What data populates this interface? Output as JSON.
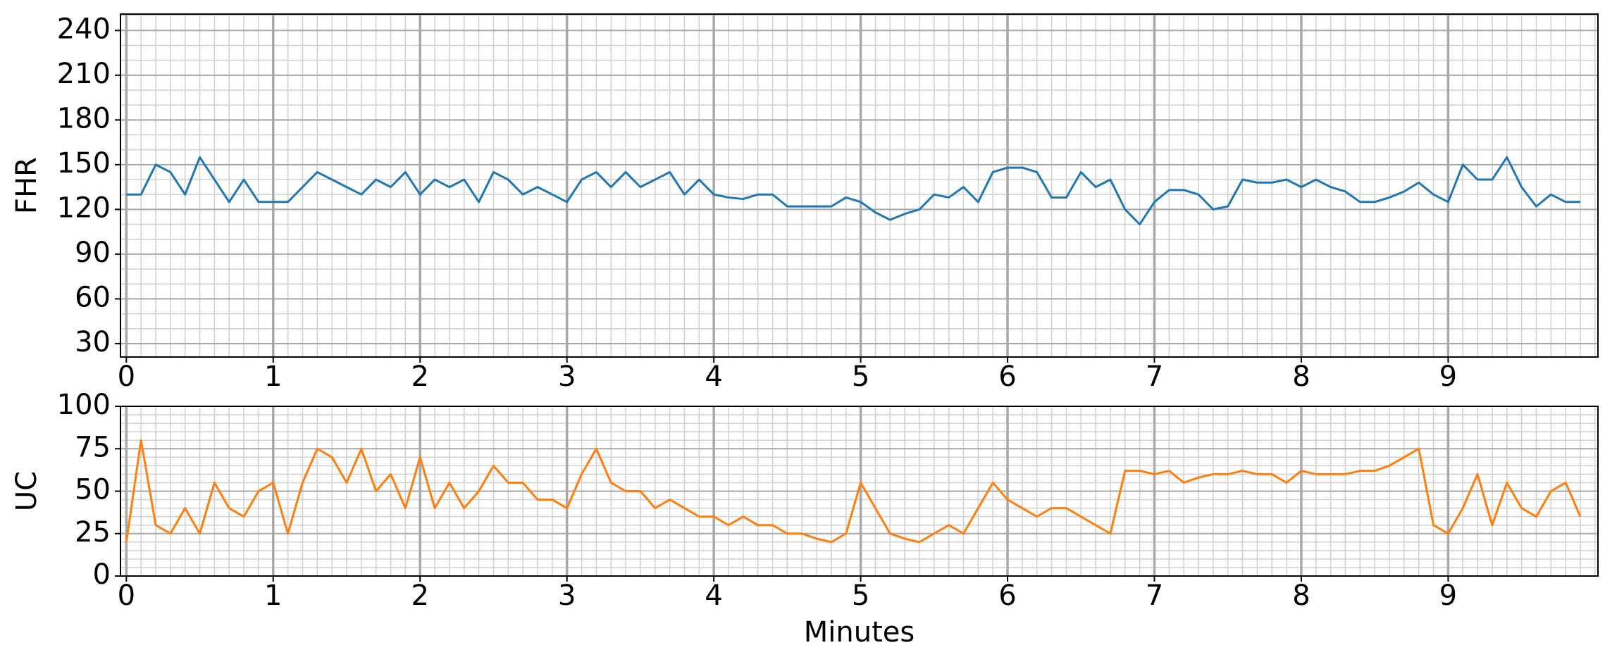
{
  "chart_data": [
    {
      "type": "line",
      "ylabel": "FHR",
      "x": [
        0,
        0.1,
        0.2,
        0.3,
        0.4,
        0.5,
        0.6,
        0.7,
        0.8,
        0.9,
        1,
        1.1,
        1.2,
        1.3,
        1.4,
        1.5,
        1.6,
        1.7,
        1.8,
        1.9,
        2,
        2.1,
        2.2,
        2.3,
        2.4,
        2.5,
        2.6,
        2.7,
        2.8,
        2.9,
        3,
        3.1,
        3.2,
        3.3,
        3.4,
        3.5,
        3.6,
        3.7,
        3.8,
        3.9,
        4,
        4.1,
        4.2,
        4.3,
        4.4,
        4.5,
        4.6,
        4.7,
        4.8,
        4.9,
        5,
        5.1,
        5.2,
        5.3,
        5.4,
        5.5,
        5.6,
        5.7,
        5.8,
        5.9,
        6,
        6.1,
        6.2,
        6.3,
        6.4,
        6.5,
        6.6,
        6.7,
        6.8,
        6.9,
        7,
        7.1,
        7.2,
        7.3,
        7.4,
        7.5,
        7.6,
        7.7,
        7.8,
        7.9,
        8,
        8.1,
        8.2,
        8.3,
        8.4,
        8.5,
        8.6,
        8.7,
        8.8,
        8.9,
        9,
        9.1,
        9.2,
        9.3,
        9.4,
        9.5,
        9.6,
        9.7,
        9.8,
        9.9
      ],
      "series": [
        {
          "color": "#1f77b4",
          "values": [
            130,
            130,
            150,
            145,
            130,
            155,
            140,
            125,
            140,
            125,
            125,
            125,
            135,
            145,
            140,
            135,
            130,
            140,
            135,
            145,
            130,
            140,
            135,
            140,
            125,
            145,
            140,
            130,
            135,
            130,
            125,
            140,
            145,
            135,
            145,
            135,
            140,
            145,
            130,
            140,
            130,
            128,
            127,
            130,
            130,
            122,
            122,
            122,
            122,
            128,
            125,
            118,
            113,
            117,
            120,
            130,
            128,
            135,
            125,
            145,
            148,
            148,
            145,
            128,
            128,
            145,
            135,
            140,
            120,
            110,
            125,
            133,
            133,
            130,
            120,
            122,
            140,
            138,
            138,
            140,
            135,
            140,
            135,
            132,
            125,
            125,
            128,
            132,
            138,
            130,
            125,
            150,
            140,
            140,
            155,
            135,
            122,
            130,
            125,
            125
          ]
        }
      ],
      "xlim": [
        -0.04,
        10.02
      ],
      "xticks": [
        0,
        1,
        2,
        3,
        4,
        5,
        6,
        7,
        8,
        9
      ],
      "ylim": [
        21,
        251
      ],
      "yticks": [
        30,
        60,
        90,
        120,
        150,
        180,
        210,
        240
      ],
      "grid": true,
      "minor_grid": {
        "x": 0.1,
        "y": 10
      }
    },
    {
      "type": "line",
      "ylabel": "UC",
      "xlabel": "Minutes",
      "x": [
        0,
        0.1,
        0.2,
        0.3,
        0.4,
        0.5,
        0.6,
        0.7,
        0.8,
        0.9,
        1,
        1.1,
        1.2,
        1.3,
        1.4,
        1.5,
        1.6,
        1.7,
        1.8,
        1.9,
        2,
        2.1,
        2.2,
        2.3,
        2.4,
        2.5,
        2.6,
        2.7,
        2.8,
        2.9,
        3,
        3.1,
        3.2,
        3.3,
        3.4,
        3.5,
        3.6,
        3.7,
        3.8,
        3.9,
        4,
        4.1,
        4.2,
        4.3,
        4.4,
        4.5,
        4.6,
        4.7,
        4.8,
        4.9,
        5,
        5.1,
        5.2,
        5.3,
        5.4,
        5.5,
        5.6,
        5.7,
        5.8,
        5.9,
        6,
        6.1,
        6.2,
        6.3,
        6.4,
        6.5,
        6.6,
        6.7,
        6.8,
        6.9,
        7,
        7.1,
        7.2,
        7.3,
        7.4,
        7.5,
        7.6,
        7.7,
        7.8,
        7.9,
        8,
        8.1,
        8.2,
        8.3,
        8.4,
        8.5,
        8.6,
        8.7,
        8.8,
        8.9,
        9,
        9.1,
        9.2,
        9.3,
        9.4,
        9.5,
        9.6,
        9.7,
        9.8,
        9.9
      ],
      "series": [
        {
          "color": "#ff7f0e",
          "values": [
            20,
            80,
            30,
            25,
            40,
            25,
            55,
            40,
            35,
            50,
            55,
            25,
            55,
            75,
            70,
            55,
            75,
            50,
            60,
            40,
            70,
            40,
            55,
            40,
            50,
            65,
            55,
            55,
            45,
            45,
            40,
            60,
            75,
            55,
            50,
            50,
            40,
            45,
            40,
            35,
            35,
            30,
            35,
            30,
            30,
            25,
            25,
            22,
            20,
            25,
            55,
            40,
            25,
            22,
            20,
            25,
            30,
            25,
            40,
            55,
            45,
            40,
            35,
            40,
            40,
            35,
            30,
            25,
            62,
            62,
            60,
            62,
            55,
            58,
            60,
            60,
            62,
            60,
            60,
            55,
            62,
            60,
            60,
            60,
            62,
            62,
            65,
            70,
            75,
            30,
            25,
            40,
            60,
            30,
            55,
            40,
            35,
            50,
            55,
            35
          ]
        }
      ],
      "xlim": [
        -0.04,
        10.02
      ],
      "xticks": [
        0,
        1,
        2,
        3,
        4,
        5,
        6,
        7,
        8,
        9
      ],
      "ylim": [
        0,
        100
      ],
      "yticks": [
        0,
        25,
        50,
        75,
        100
      ],
      "grid": true,
      "minor_grid": {
        "x": 0.1,
        "y": 5
      }
    }
  ]
}
